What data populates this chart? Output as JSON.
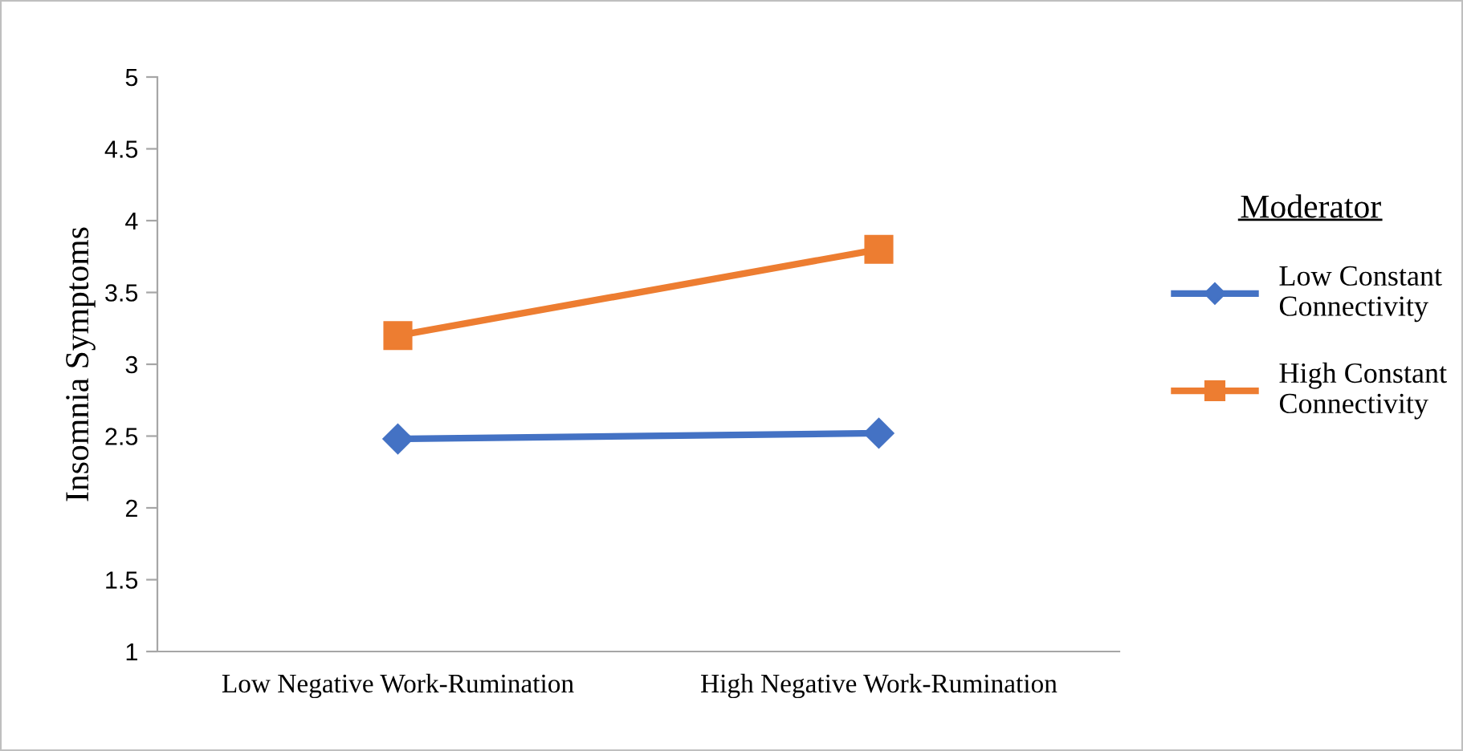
{
  "chart_data": {
    "type": "line",
    "ylabel": "Insomnia Symptoms",
    "legend_title": "Moderator",
    "legend": "right",
    "categories": [
      "Low Negative Work-Rumination",
      "High Negative Work-Rumination"
    ],
    "ylim": [
      1,
      5
    ],
    "yticks": [
      1,
      1.5,
      2,
      2.5,
      3,
      3.5,
      4,
      4.5,
      5
    ],
    "grid": false,
    "line_style": "solid",
    "series": [
      {
        "name": "Low Constant Connectivity",
        "color": "#4472c4",
        "marker": "diamond",
        "values": [
          2.48,
          2.52
        ]
      },
      {
        "name": "High Constant Connectivity",
        "color": "#ed7d31",
        "marker": "square",
        "values": [
          3.2,
          3.8
        ]
      }
    ]
  }
}
